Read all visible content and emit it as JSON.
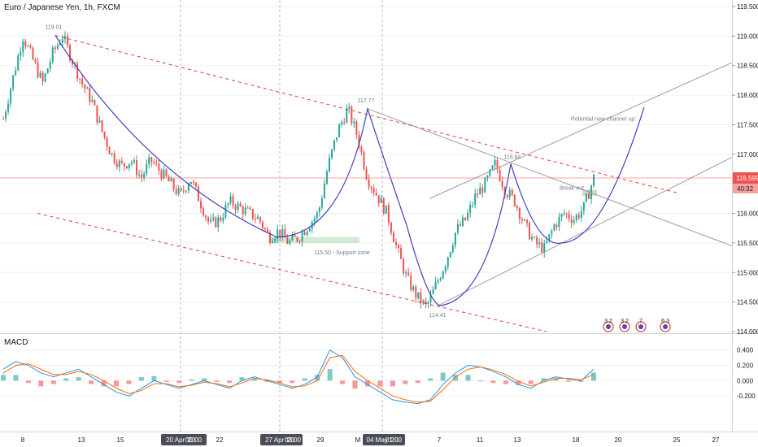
{
  "header": {
    "symbol_title": "Euro / Japanese Yen, 1h, FXCM"
  },
  "macd_panel": {
    "title": "MACD"
  },
  "colors": {
    "up": "#26a69a",
    "down": "#ef5350",
    "trend": "#3f3fbf",
    "resistance": "#e53935",
    "channel": "#9e9e9e",
    "support_zone": "#4caf50",
    "grid": "#eef0f3",
    "price_line": "#ef5350",
    "macd_line": "#2196f3",
    "signal_line": "#ff6d00"
  },
  "chart_data": [
    {
      "type": "candlestick",
      "title": "Euro / Japanese Yen, 1h, FXCM",
      "ylim": [
        114.0,
        119.5
      ],
      "y_ticks": [
        "119.500",
        "119.000",
        "118.500",
        "118.000",
        "117.500",
        "117.000",
        "116.500",
        "116.000",
        "115.500",
        "115.000",
        "114.500",
        "114.000"
      ],
      "x_ticks": [
        "8",
        "13",
        "15",
        "20 Apr '20",
        "00:00",
        "22",
        "27 Apr '20",
        "02:00",
        "29",
        "M",
        "04 May '20",
        "01:00",
        "7",
        "11",
        "13",
        "18",
        "20",
        "25",
        "27"
      ],
      "price_path": [
        [
          0,
          117.6
        ],
        [
          2,
          118.3
        ],
        [
          4,
          119.0
        ],
        [
          6,
          118.6
        ],
        [
          8,
          118.2
        ],
        [
          10,
          118.7
        ],
        [
          12,
          119.01
        ],
        [
          14,
          118.6
        ],
        [
          16,
          118.2
        ],
        [
          18,
          117.9
        ],
        [
          20,
          117.4
        ],
        [
          22,
          117.0
        ],
        [
          24,
          116.8
        ],
        [
          26,
          116.9
        ],
        [
          28,
          116.6
        ],
        [
          30,
          116.9
        ],
        [
          32,
          116.7
        ],
        [
          34,
          116.5
        ],
        [
          36,
          116.3
        ],
        [
          38,
          116.6
        ],
        [
          40,
          116.2
        ],
        [
          42,
          115.8
        ],
        [
          44,
          115.9
        ],
        [
          46,
          116.2
        ],
        [
          48,
          116.1
        ],
        [
          50,
          116.0
        ],
        [
          52,
          115.9
        ],
        [
          54,
          115.6
        ],
        [
          56,
          115.7
        ],
        [
          58,
          115.5
        ],
        [
          60,
          115.6
        ],
        [
          62,
          115.8
        ],
        [
          64,
          116.0
        ],
        [
          66,
          116.8
        ],
        [
          68,
          117.4
        ],
        [
          70,
          117.77
        ],
        [
          72,
          117.3
        ],
        [
          74,
          116.6
        ],
        [
          76,
          116.3
        ],
        [
          78,
          116.0
        ],
        [
          80,
          115.4
        ],
        [
          82,
          114.9
        ],
        [
          84,
          114.6
        ],
        [
          86,
          114.41
        ],
        [
          88,
          114.8
        ],
        [
          90,
          115.2
        ],
        [
          92,
          115.7
        ],
        [
          94,
          115.9
        ],
        [
          96,
          116.3
        ],
        [
          98,
          116.5
        ],
        [
          100,
          116.84
        ],
        [
          102,
          116.4
        ],
        [
          104,
          116.2
        ],
        [
          106,
          115.8
        ],
        [
          108,
          115.5
        ],
        [
          110,
          115.4
        ],
        [
          112,
          115.8
        ],
        [
          114,
          116.0
        ],
        [
          116,
          115.9
        ],
        [
          118,
          116.1
        ],
        [
          120,
          116.599
        ]
      ],
      "annotations": [
        {
          "text": "119.01",
          "role": "peak"
        },
        {
          "text": "117.77",
          "role": "peak"
        },
        {
          "text": "116.84",
          "role": "peak"
        },
        {
          "text": "114.41",
          "role": "low"
        },
        {
          "text": "115.50 - Support zone",
          "role": "support"
        },
        {
          "text": "Break out",
          "role": "breakout"
        },
        {
          "text": "Potential new channel up:",
          "role": "projection"
        }
      ],
      "last_price": "116.599",
      "countdown": "40:32",
      "event_markers": [
        {
          "text": "3 2"
        },
        {
          "text": "3 2"
        },
        {
          "text": "7"
        },
        {
          "text": "6 3"
        }
      ]
    },
    {
      "type": "line",
      "title": "MACD",
      "ylim": [
        -0.4,
        0.45
      ],
      "y_ticks": [
        "0.400",
        "0.200",
        "0.000",
        "-0.200"
      ],
      "series": [
        {
          "name": "",
          "role": "macd",
          "values": [
            0.15,
            0.25,
            0.2,
            0.1,
            0.05,
            0.1,
            0.15,
            0.05,
            -0.05,
            -0.15,
            -0.2,
            -0.1,
            0.0,
            -0.05,
            -0.1,
            -0.05,
            0.0,
            -0.05,
            -0.1,
            0.0,
            0.05,
            0.0,
            -0.05,
            -0.1,
            -0.05,
            0.05,
            0.4,
            0.3,
            0.05,
            -0.05,
            -0.15,
            -0.25,
            -0.28,
            -0.3,
            -0.25,
            -0.05,
            0.1,
            0.2,
            0.18,
            0.12,
            0.05,
            -0.05,
            -0.1,
            0.0,
            0.05,
            0.02,
            0.0,
            0.15
          ]
        },
        {
          "name": "",
          "role": "signal",
          "values": [
            0.1,
            0.2,
            0.22,
            0.15,
            0.08,
            0.08,
            0.12,
            0.08,
            0.0,
            -0.1,
            -0.17,
            -0.13,
            -0.04,
            -0.04,
            -0.08,
            -0.06,
            -0.02,
            -0.04,
            -0.08,
            -0.03,
            0.03,
            0.01,
            -0.03,
            -0.08,
            -0.07,
            0.0,
            0.3,
            0.33,
            0.12,
            0.0,
            -0.1,
            -0.2,
            -0.25,
            -0.28,
            -0.27,
            -0.12,
            0.05,
            0.15,
            0.18,
            0.14,
            0.08,
            -0.01,
            -0.07,
            -0.02,
            0.03,
            0.03,
            0.01,
            0.08
          ]
        }
      ]
    }
  ]
}
